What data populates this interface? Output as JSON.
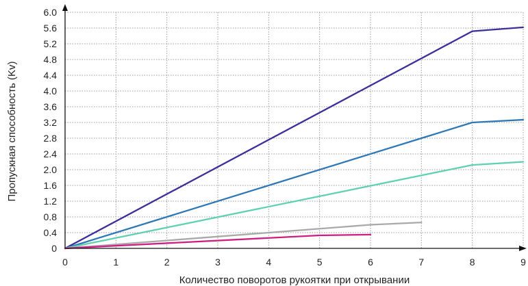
{
  "chart_data": {
    "type": "line",
    "title": "",
    "xlabel": "Количество поворотов рукоятки при открывании",
    "ylabel": "Пропускная способность (Kv)",
    "xlim": [
      0,
      9
    ],
    "ylim": [
      0,
      6.0
    ],
    "x_ticks": [
      "0",
      "1",
      "2",
      "3",
      "4",
      "5",
      "6",
      "7",
      "8",
      "9"
    ],
    "y_ticks": [
      "0",
      "0.4",
      "0.8",
      "1.2",
      "1.6",
      "2.0",
      "2.4",
      "2.8",
      "3.2",
      "3.6",
      "4.0",
      "4.4",
      "4.8",
      "5.2",
      "5.6",
      "6.0"
    ],
    "grid": true,
    "legend": "none",
    "series": [
      {
        "color": "#3a2f9a",
        "x": [
          0,
          8,
          9
        ],
        "y": [
          0,
          5.52,
          5.62
        ]
      },
      {
        "color": "#2f78b6",
        "x": [
          0,
          8,
          9
        ],
        "y": [
          0,
          3.2,
          3.27
        ]
      },
      {
        "color": "#5fd1b0",
        "x": [
          0,
          8,
          9
        ],
        "y": [
          0,
          2.12,
          2.2
        ]
      },
      {
        "color": "#a9a9a9",
        "x": [
          0,
          6,
          7
        ],
        "y": [
          0,
          0.6,
          0.66
        ]
      },
      {
        "color": "#d01d82",
        "x": [
          0,
          5,
          6
        ],
        "y": [
          0,
          0.33,
          0.35
        ]
      }
    ]
  }
}
